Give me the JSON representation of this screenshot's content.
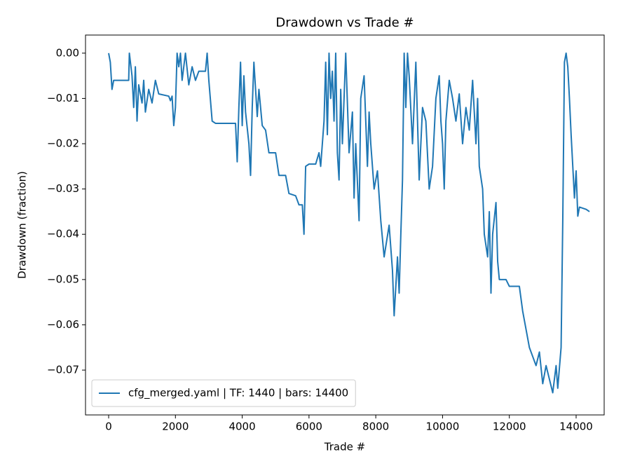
{
  "chart_data": {
    "type": "line",
    "title": "Drawdown vs Trade #",
    "xlabel": "Trade #",
    "ylabel": "Drawdown (fraction)",
    "legend": "lower left",
    "x": [
      0,
      50,
      100,
      150,
      600,
      620,
      700,
      750,
      800,
      850,
      900,
      1000,
      1050,
      1100,
      1200,
      1300,
      1400,
      1500,
      1800,
      1850,
      1900,
      1950,
      2000,
      2050,
      2100,
      2150,
      2200,
      2300,
      2400,
      2500,
      2600,
      2700,
      2900,
      2950,
      3000,
      3100,
      3200,
      3800,
      3850,
      3900,
      3950,
      4000,
      4050,
      4100,
      4200,
      4250,
      4300,
      4350,
      4450,
      4500,
      4600,
      4700,
      4800,
      5000,
      5100,
      5300,
      5400,
      5600,
      5700,
      5800,
      5850,
      5900,
      6000,
      6200,
      6300,
      6350,
      6450,
      6500,
      6550,
      6600,
      6650,
      6700,
      6750,
      6800,
      6850,
      6900,
      6950,
      7000,
      7100,
      7200,
      7300,
      7350,
      7400,
      7500,
      7550,
      7650,
      7750,
      7800,
      7850,
      7950,
      8050,
      8150,
      8250,
      8400,
      8500,
      8550,
      8650,
      8700,
      8750,
      8800,
      8850,
      8900,
      8950,
      9000,
      9100,
      9200,
      9300,
      9400,
      9500,
      9600,
      9700,
      9800,
      9900,
      9950,
      10000,
      10050,
      10100,
      10200,
      10300,
      10400,
      10500,
      10600,
      10700,
      10800,
      10900,
      11000,
      11050,
      11100,
      11200,
      11250,
      11350,
      11400,
      11450,
      11500,
      11600,
      11650,
      11700,
      11900,
      12000,
      12300,
      12400,
      12600,
      12700,
      12800,
      12900,
      13000,
      13100,
      13200,
      13300,
      13400,
      13450,
      13550,
      13600,
      13650,
      13700,
      13750,
      13800,
      13850,
      13900,
      13950,
      14000,
      14050,
      14100,
      14300,
      14400
    ],
    "series": [
      {
        "name": "cfg_merged.yaml | TF: 1440 | bars: 14400",
        "color": "#1f77b4",
        "values": [
          0,
          -0.002,
          -0.008,
          -0.006,
          -0.006,
          0,
          -0.005,
          -0.012,
          -0.003,
          -0.015,
          -0.007,
          -0.011,
          -0.006,
          -0.013,
          -0.008,
          -0.011,
          -0.006,
          -0.009,
          -0.0095,
          -0.0105,
          -0.0095,
          -0.016,
          -0.012,
          0,
          -0.003,
          0,
          -0.006,
          0,
          -0.007,
          -0.003,
          -0.006,
          -0.004,
          -0.004,
          0,
          -0.006,
          -0.015,
          -0.0155,
          -0.0155,
          -0.024,
          -0.012,
          -0.002,
          -0.016,
          -0.005,
          -0.013,
          -0.02,
          -0.027,
          -0.012,
          -0.002,
          -0.014,
          -0.008,
          -0.016,
          -0.017,
          -0.022,
          -0.022,
          -0.027,
          -0.027,
          -0.031,
          -0.0315,
          -0.0335,
          -0.0335,
          -0.04,
          -0.025,
          -0.0245,
          -0.0245,
          -0.022,
          -0.025,
          -0.015,
          -0.002,
          -0.018,
          0,
          -0.01,
          -0.004,
          -0.015,
          0,
          -0.022,
          -0.028,
          -0.008,
          -0.02,
          0,
          -0.022,
          -0.013,
          -0.032,
          -0.02,
          -0.037,
          -0.01,
          -0.005,
          -0.025,
          -0.013,
          -0.02,
          -0.03,
          -0.026,
          -0.037,
          -0.045,
          -0.038,
          -0.048,
          -0.058,
          -0.045,
          -0.053,
          -0.04,
          -0.028,
          0,
          -0.012,
          0,
          -0.005,
          -0.02,
          -0.002,
          -0.028,
          -0.012,
          -0.015,
          -0.03,
          -0.025,
          -0.01,
          -0.005,
          -0.015,
          -0.02,
          -0.03,
          -0.015,
          -0.006,
          -0.01,
          -0.015,
          -0.009,
          -0.02,
          -0.012,
          -0.017,
          -0.006,
          -0.02,
          -0.01,
          -0.025,
          -0.03,
          -0.04,
          -0.045,
          -0.035,
          -0.053,
          -0.04,
          -0.033,
          -0.046,
          -0.05,
          -0.05,
          -0.0515,
          -0.0515,
          -0.057,
          -0.065,
          -0.067,
          -0.069,
          -0.066,
          -0.073,
          -0.069,
          -0.072,
          -0.075,
          -0.069,
          -0.074,
          -0.065,
          -0.037,
          -0.002,
          0,
          -0.003,
          -0.01,
          -0.018,
          -0.025,
          -0.032,
          -0.026,
          -0.036,
          -0.034,
          -0.0345,
          -0.035
        ]
      }
    ],
    "xlim": [
      -693,
      14840
    ],
    "xticks": [
      0,
      2000,
      4000,
      6000,
      8000,
      10000,
      12000,
      14000
    ],
    "ylim": [
      -0.0799,
      0.004
    ],
    "yticks": [
      {
        "value": 0,
        "label": "0.00"
      },
      {
        "value": -0.01,
        "label": "−0.01"
      },
      {
        "value": -0.02,
        "label": "−0.02"
      },
      {
        "value": -0.03,
        "label": "−0.03"
      },
      {
        "value": -0.04,
        "label": "−0.04"
      },
      {
        "value": -0.05,
        "label": "−0.05"
      },
      {
        "value": -0.06,
        "label": "−0.06"
      },
      {
        "value": -0.07,
        "label": "−0.07"
      }
    ]
  }
}
